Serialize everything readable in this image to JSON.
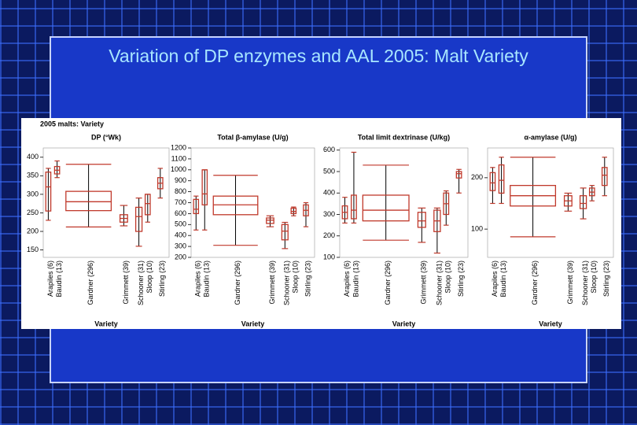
{
  "slide_title": "Variation of DP enzymes and AAL 2005: Malt Variety",
  "figure_title": "2005 malts: Variety",
  "chart_data": [
    {
      "type": "box",
      "title": "DP (°Wk)",
      "x_label": "Variety",
      "color": "#c0392b",
      "categories": [
        "Arapiles (6)",
        "Baudin (13)",
        "Gardner (296)",
        "Grimmett (39)",
        "Schooner (31)",
        "Sloop (10)",
        "Stirling (23)"
      ],
      "min": [
        230,
        345,
        212,
        215,
        160,
        225,
        290
      ],
      "q1": [
        255,
        355,
        256,
        225,
        200,
        245,
        315
      ],
      "median": [
        320,
        365,
        280,
        235,
        240,
        275,
        330
      ],
      "q3": [
        360,
        375,
        308,
        245,
        265,
        300,
        345
      ],
      "max": [
        370,
        390,
        381,
        270,
        290,
        300,
        370
      ],
      "ylim": [
        130,
        425
      ],
      "yticks": [
        150,
        200,
        250,
        300,
        350,
        400
      ]
    },
    {
      "type": "box",
      "title": "Total β-amylase (U/g)",
      "x_label": "Variety",
      "color": "#c0392b",
      "categories": [
        "Arapiles (6)",
        "Baudin (13)",
        "Gardner (296)",
        "Grimmett (39)",
        "Schooner (31)",
        "Sloop (10)",
        "Stirling (23)"
      ],
      "min": [
        450,
        450,
        310,
        480,
        280,
        580,
        480
      ],
      "q1": [
        600,
        680,
        590,
        510,
        360,
        600,
        580
      ],
      "median": [
        640,
        780,
        680,
        540,
        440,
        620,
        630
      ],
      "q3": [
        730,
        1000,
        760,
        560,
        500,
        650,
        680
      ],
      "max": [
        760,
        1000,
        950,
        580,
        520,
        660,
        700
      ],
      "ylim": [
        200,
        1200
      ],
      "yticks": [
        200,
        300,
        400,
        500,
        600,
        700,
        800,
        900,
        1000,
        1100,
        1200
      ]
    },
    {
      "type": "box",
      "title": "Total limit dextrinase (U/kg)",
      "x_label": "Variety",
      "color": "#c0392b",
      "categories": [
        "Arapiles (6)",
        "Baudin (13)",
        "Gardner (296)",
        "Grimmett (39)",
        "Schooner (31)",
        "Sloop (10)",
        "Stirling (23)"
      ],
      "min": [
        260,
        260,
        180,
        170,
        120,
        250,
        400
      ],
      "q1": [
        280,
        280,
        270,
        240,
        220,
        300,
        470
      ],
      "median": [
        310,
        320,
        320,
        270,
        270,
        350,
        490
      ],
      "q3": [
        340,
        390,
        390,
        310,
        320,
        400,
        500
      ],
      "max": [
        380,
        590,
        530,
        330,
        330,
        410,
        510
      ],
      "ylim": [
        100,
        610
      ],
      "yticks": [
        100,
        200,
        300,
        400,
        500,
        600
      ]
    },
    {
      "type": "box",
      "title": "α-amylase (U/g)",
      "x_label": "Variety",
      "color": "#c0392b",
      "categories": [
        "Arapiles (6)",
        "Baudin (13)",
        "Gardner (296)",
        "Grimmett (39)",
        "Schooner (31)",
        "Sloop (10)",
        "Stirling (23)"
      ],
      "min": [
        150,
        150,
        85,
        135,
        120,
        155,
        165
      ],
      "q1": [
        175,
        170,
        145,
        145,
        140,
        165,
        185
      ],
      "median": [
        190,
        195,
        165,
        155,
        150,
        172,
        205
      ],
      "q3": [
        210,
        225,
        185,
        165,
        165,
        180,
        220
      ],
      "max": [
        220,
        240,
        240,
        170,
        180,
        185,
        240
      ],
      "ylim": [
        45,
        258
      ],
      "yticks": [
        100,
        200
      ]
    }
  ]
}
